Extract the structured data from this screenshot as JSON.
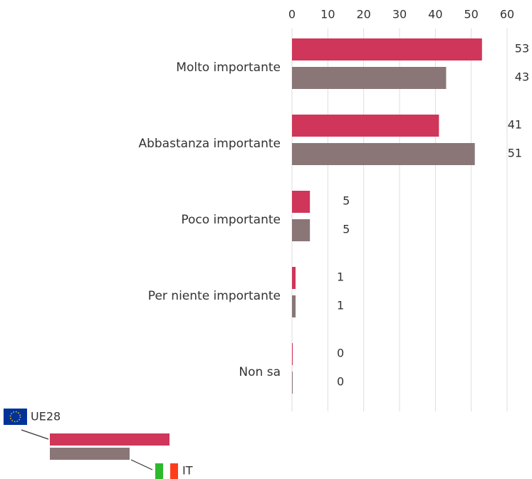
{
  "chart_data": {
    "type": "bar",
    "orientation": "horizontal",
    "categories": [
      "Molto importante",
      "Abbastanza importante",
      "Poco importante",
      "Per niente importante",
      "Non sa"
    ],
    "series": [
      {
        "name": "UE28",
        "color": "#cf3659",
        "values": [
          53,
          41,
          5,
          1,
          0
        ]
      },
      {
        "name": "IT",
        "color": "#8a7677",
        "values": [
          43,
          51,
          5,
          1,
          0
        ]
      }
    ],
    "xlim": [
      0,
      60
    ],
    "xticks": [
      0,
      10,
      20,
      30,
      40,
      50,
      60
    ],
    "grid": true,
    "legend": "bottom-left"
  }
}
